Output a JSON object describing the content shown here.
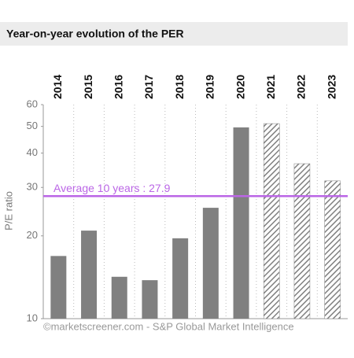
{
  "chart_data": {
    "type": "bar",
    "title": "Year-on-year evolution of the PER",
    "categories": [
      "2014",
      "2015",
      "2016",
      "2017",
      "2018",
      "2019",
      "2020",
      "2021",
      "2022",
      "2023"
    ],
    "series": [
      {
        "color": "#808080",
        "values": [
          16.9,
          20.9,
          14.2,
          13.8,
          19.6,
          25.3,
          49.6,
          51.2,
          36.6,
          31.7
        ],
        "hatched": [
          false,
          false,
          false,
          false,
          false,
          false,
          false,
          true,
          true,
          true
        ]
      }
    ],
    "y_label": "P/E ratio",
    "ylim": [
      10,
      60
    ],
    "yticks": [
      10,
      20,
      30,
      40,
      50,
      60
    ],
    "log_scale": true,
    "reference_line": {
      "value": 27.9,
      "label": "Average 10 years : 27.9",
      "color": "#bb66e6"
    },
    "source": "©marketscreener.com - S&P Global Market Intelligence"
  }
}
